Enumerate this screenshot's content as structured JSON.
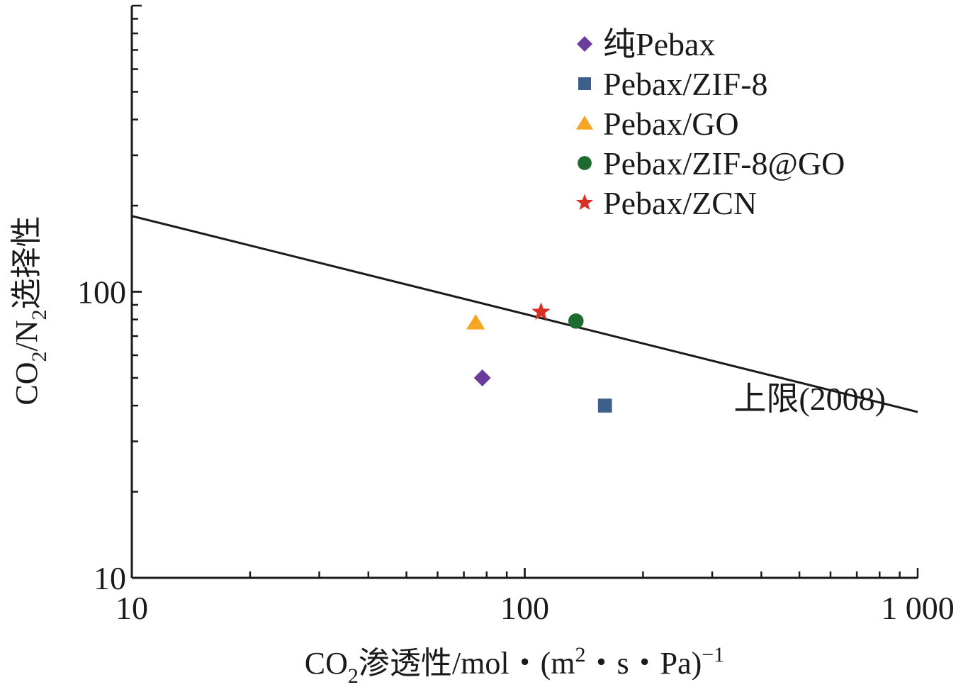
{
  "chart_data": {
    "type": "scatter",
    "xscale": "log",
    "yscale": "log",
    "xlim": [
      10,
      1000
    ],
    "ylim": [
      10,
      1000
    ],
    "xticks": [
      {
        "value": 10,
        "label": "10"
      },
      {
        "value": 100,
        "label": "100"
      },
      {
        "value": 1000,
        "label": "1 000"
      }
    ],
    "yticks": [
      {
        "value": 10,
        "label": "10"
      },
      {
        "value": 100,
        "label": "100"
      }
    ],
    "xlabel": {
      "p1": "CO",
      "sub": "2",
      "p2": "渗透性/mol・(m",
      "sup1": "2",
      "p3": "・s・Pa)",
      "sup2": "−1"
    },
    "ylabel": {
      "p1": "CO",
      "sub1": "2",
      "p2": "/N",
      "sub2": "2",
      "p3": "选择性"
    },
    "grid": false,
    "legend_position": "top-right",
    "series": [
      {
        "name": "纯Pebax",
        "marker": "diamond",
        "color": "#6a3d9a",
        "points": [
          {
            "x": 78,
            "y": 50
          }
        ]
      },
      {
        "name": "Pebax/ZIF-8",
        "marker": "square",
        "color": "#3e5f8a",
        "points": [
          {
            "x": 160,
            "y": 40
          }
        ]
      },
      {
        "name": "Pebax/GO",
        "marker": "triangle",
        "color": "#f5a623",
        "points": [
          {
            "x": 75,
            "y": 78
          }
        ]
      },
      {
        "name": "Pebax/ZIF-8@GO",
        "marker": "circle",
        "color": "#1e6b30",
        "points": [
          {
            "x": 135,
            "y": 79
          }
        ]
      },
      {
        "name": "Pebax/ZCN",
        "marker": "star",
        "color": "#d93025",
        "points": [
          {
            "x": 110,
            "y": 85
          }
        ]
      }
    ],
    "upper_bound": {
      "label": "上限(2008)",
      "points": [
        {
          "x": 10,
          "y": 184
        },
        {
          "x": 1000,
          "y": 38
        }
      ]
    }
  }
}
